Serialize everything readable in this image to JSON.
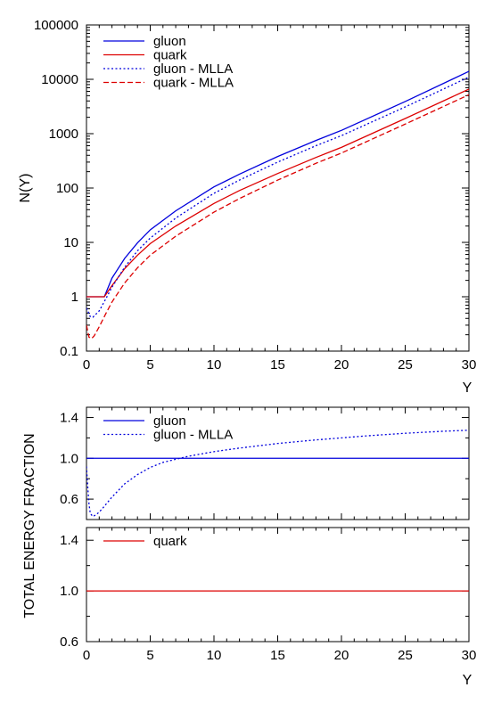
{
  "chart_data": [
    {
      "type": "line",
      "panel": "top",
      "xlabel": "Y",
      "ylabel": "N(Y)",
      "xlim": [
        0,
        30
      ],
      "ylim": [
        0.1,
        100000
      ],
      "yscale": "log",
      "grid": false,
      "legend_position": "top-left",
      "x_ticks": [
        "0",
        "5",
        "10",
        "15",
        "20",
        "25",
        "30"
      ],
      "y_ticks": [
        "0.1",
        "1",
        "10",
        "100",
        "1000",
        "10000",
        "100000"
      ],
      "series": [
        {
          "name": "gluon",
          "color": "#0000dd",
          "style": "solid",
          "x": [
            0,
            1.4,
            2,
            3,
            4,
            5,
            7,
            10,
            12,
            15,
            18,
            20,
            25,
            30
          ],
          "y": [
            1.0,
            1.0,
            2.2,
            5.1,
            9.8,
            17,
            38,
            105,
            180,
            380,
            750,
            1150,
            3900,
            14000
          ]
        },
        {
          "name": "quark",
          "color": "#dd0000",
          "style": "solid",
          "x": [
            0,
            1.4,
            2,
            3,
            4,
            5,
            7,
            10,
            12,
            15,
            18,
            20,
            25,
            30
          ],
          "y": [
            1.0,
            1.0,
            1.6,
            3.3,
            5.8,
            9.5,
            20,
            52,
            90,
            185,
            365,
            560,
            1900,
            6600
          ]
        },
        {
          "name": "gluon - MLLA",
          "color": "#0000dd",
          "style": "dotted",
          "x": [
            0,
            0.3,
            0.5,
            1,
            1.5,
            2,
            3,
            4,
            5,
            7,
            10,
            12,
            15,
            18,
            20,
            25,
            30
          ],
          "y": [
            0.62,
            0.43,
            0.42,
            0.55,
            0.9,
            1.5,
            3.5,
            7,
            12,
            28,
            80,
            140,
            300,
            600,
            920,
            3100,
            11000
          ]
        },
        {
          "name": "quark - MLLA",
          "color": "#dd0000",
          "style": "dashed",
          "x": [
            0,
            0.2,
            0.4,
            0.6,
            1,
            1.5,
            2,
            3,
            4,
            5,
            7,
            10,
            12,
            15,
            18,
            20,
            25,
            30
          ],
          "y": [
            0.3,
            0.18,
            0.17,
            0.19,
            0.28,
            0.48,
            0.8,
            1.8,
            3.4,
            5.8,
            13,
            36,
            64,
            140,
            285,
            440,
            1500,
            5200
          ]
        }
      ]
    },
    {
      "type": "line",
      "panel": "middle",
      "xlim": [
        0,
        30
      ],
      "ylim": [
        0.4,
        1.5
      ],
      "grid": false,
      "legend_position": "top-left",
      "y_ticks": [
        "0.6",
        "1.0",
        "1.4"
      ],
      "series": [
        {
          "name": "gluon",
          "color": "#0000dd",
          "style": "solid",
          "x": [
            0,
            30
          ],
          "y": [
            1.0,
            1.0
          ]
        },
        {
          "name": "gluon - MLLA",
          "color": "#0000dd",
          "style": "dotted",
          "x": [
            0,
            0.1,
            0.2,
            0.3,
            0.5,
            0.8,
            1.2,
            2,
            3,
            4,
            5,
            6,
            7,
            8,
            10,
            12,
            15,
            18,
            20,
            22,
            25,
            28,
            30
          ],
          "y": [
            0.92,
            0.72,
            0.55,
            0.46,
            0.43,
            0.45,
            0.5,
            0.62,
            0.75,
            0.84,
            0.91,
            0.96,
            0.99,
            1.02,
            1.065,
            1.1,
            1.145,
            1.18,
            1.2,
            1.22,
            1.245,
            1.265,
            1.275
          ]
        }
      ]
    },
    {
      "type": "line",
      "panel": "bottom",
      "xlabel": "Y",
      "xlim": [
        0,
        30
      ],
      "ylim": [
        0.6,
        1.5
      ],
      "grid": false,
      "legend_position": "top-left",
      "x_ticks": [
        "0",
        "5",
        "10",
        "15",
        "20",
        "25",
        "30"
      ],
      "y_ticks": [
        "0.6",
        "1.0",
        "1.4"
      ],
      "series": [
        {
          "name": "quark",
          "color": "#dd0000",
          "style": "solid",
          "x": [
            0,
            30
          ],
          "y": [
            1.0,
            1.0
          ]
        }
      ]
    }
  ],
  "shared_ylabel": "TOTAL  ENERGY  FRACTION"
}
